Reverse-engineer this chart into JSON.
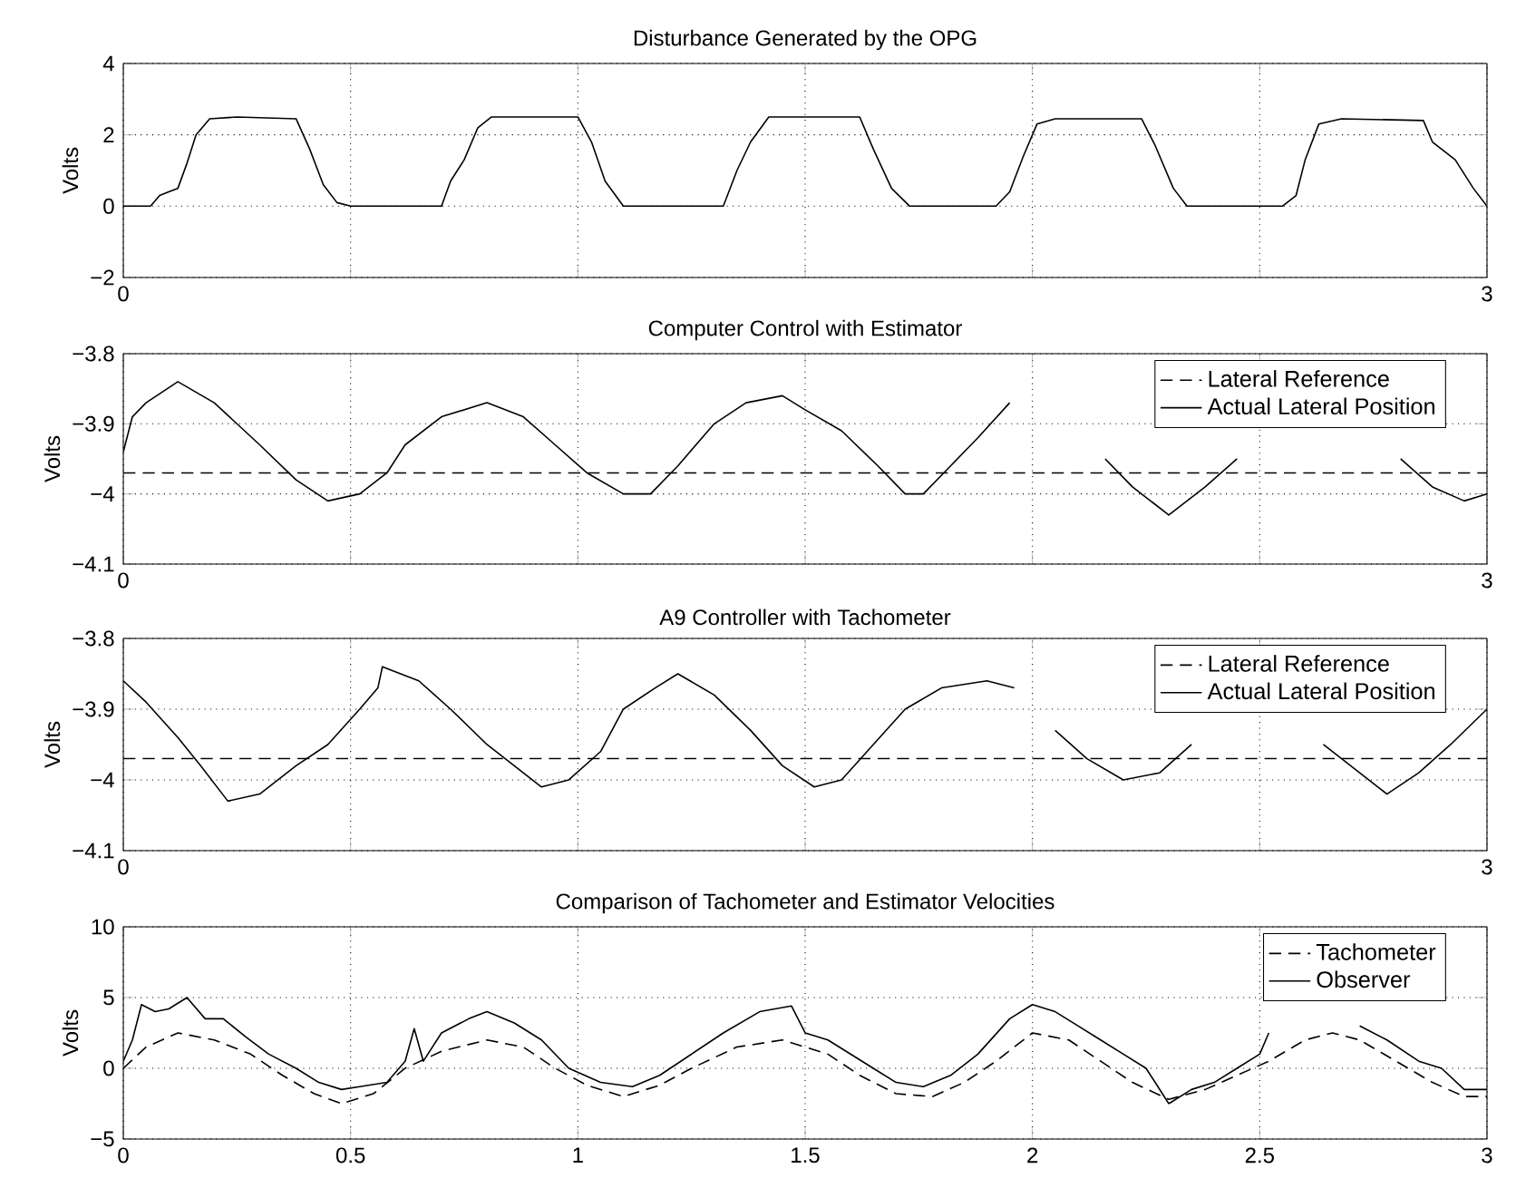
{
  "chart_data": [
    {
      "type": "line",
      "title": "Disturbance Generated by the OPG",
      "ylabel": "Volts",
      "xlim": [
        0,
        3
      ],
      "ylim": [
        -2,
        4
      ],
      "xticks": [
        0,
        {
          "value": 0.5,
          "label": null
        },
        {
          "value": 1,
          "label": null
        },
        {
          "value": 1.5,
          "label": null
        },
        {
          "value": 2,
          "label": null
        },
        {
          "value": 2.5,
          "label": null
        },
        3
      ],
      "yticks": [
        {
          "value": -2,
          "label": "−2"
        },
        0,
        2,
        4
      ],
      "grid": true,
      "line_style": "solid",
      "series": [
        {
          "color": "#000000",
          "x": [
            0,
            0.06,
            0.08,
            0.1,
            0.12,
            0.14,
            0.16,
            0.19,
            0.25,
            0.38,
            0.41,
            0.44,
            0.47,
            0.5,
            0.7,
            0.72,
            0.75,
            0.78,
            0.81,
            1.0,
            1.03,
            1.06,
            1.1,
            1.32,
            1.35,
            1.38,
            1.42,
            1.62,
            1.65,
            1.69,
            1.73,
            1.92,
            1.95,
            1.98,
            2.01,
            2.05,
            2.24,
            2.27,
            2.31,
            2.34,
            2.55,
            2.58,
            2.6,
            2.63,
            2.68,
            2.86,
            2.88,
            2.93,
            2.97,
            3.0
          ],
          "values": [
            0,
            0,
            0.3,
            0.4,
            0.5,
            1.2,
            2.0,
            2.45,
            2.5,
            2.45,
            1.6,
            0.6,
            0.1,
            0,
            0,
            0.7,
            1.3,
            2.2,
            2.5,
            2.5,
            1.8,
            0.7,
            0,
            0,
            1.0,
            1.8,
            2.5,
            2.5,
            1.6,
            0.5,
            0,
            0,
            0.4,
            1.4,
            2.3,
            2.45,
            2.45,
            1.7,
            0.5,
            0,
            0,
            0.3,
            1.3,
            2.3,
            2.45,
            2.4,
            1.8,
            1.3,
            0.5,
            0
          ]
        }
      ]
    },
    {
      "type": "line",
      "title": "Computer Control with Estimator",
      "ylabel": "Volts",
      "xlim": [
        0,
        3
      ],
      "ylim": [
        -4.1,
        -3.8
      ],
      "xticks": [
        0,
        {
          "value": 0.5,
          "label": null
        },
        {
          "value": 1,
          "label": null
        },
        {
          "value": 1.5,
          "label": null
        },
        {
          "value": 2,
          "label": null
        },
        {
          "value": 2.5,
          "label": null
        },
        3
      ],
      "yticks": [
        {
          "value": -4.1,
          "label": "−4.1"
        },
        {
          "value": -4,
          "label": "−4"
        },
        {
          "value": -3.9,
          "label": "−3.9"
        },
        {
          "value": -3.8,
          "label": "−3.8"
        }
      ],
      "grid": true,
      "legend": "top right",
      "series": [
        {
          "name": "Lateral Reference",
          "color": "#000000",
          "line_style": "dashed",
          "x": [
            0,
            3
          ],
          "values": [
            -3.97,
            -3.97
          ]
        },
        {
          "name": "Actual Lateral Position",
          "color": "#000000",
          "line_style": "solid",
          "x": [
            0,
            0.02,
            0.05,
            0.12,
            0.2,
            0.3,
            0.38,
            0.45,
            0.52,
            0.58,
            0.62,
            0.7,
            0.8,
            0.88,
            0.95,
            1.02,
            1.1,
            1.16,
            1.22,
            1.3,
            1.37,
            1.45,
            1.5,
            1.58,
            1.66,
            1.72,
            1.76,
            1.82,
            1.88,
            1.95,
            2.05,
            2.16,
            2.22,
            2.3,
            2.38,
            2.45,
            2.6,
            2.81,
            2.88,
            2.95,
            3.0
          ],
          "values": [
            -3.94,
            -3.89,
            -3.87,
            -3.84,
            -3.87,
            -3.93,
            -3.98,
            -4.01,
            -4.0,
            -3.97,
            -3.93,
            -3.89,
            -3.87,
            -3.89,
            -3.93,
            -3.97,
            -4.0,
            -4.0,
            -3.96,
            -3.9,
            -3.87,
            -3.86,
            -3.88,
            -3.91,
            -3.96,
            -4.0,
            -4.0,
            -3.96,
            -3.92,
            -3.87,
            null,
            -3.95,
            -3.99,
            -4.03,
            -3.99,
            -3.95,
            null,
            -3.95,
            -3.99,
            -4.01,
            -4.0
          ]
        }
      ]
    },
    {
      "type": "line",
      "title": "A9 Controller with Tachometer",
      "ylabel": "Volts",
      "xlim": [
        0,
        3
      ],
      "ylim": [
        -4.1,
        -3.8
      ],
      "xticks": [
        0,
        {
          "value": 0.5,
          "label": null
        },
        {
          "value": 1,
          "label": null
        },
        {
          "value": 1.5,
          "label": null
        },
        {
          "value": 2,
          "label": null
        },
        {
          "value": 2.5,
          "label": null
        },
        3
      ],
      "yticks": [
        {
          "value": -4.1,
          "label": "−4.1"
        },
        {
          "value": -4,
          "label": "−4"
        },
        {
          "value": -3.9,
          "label": "−3.9"
        },
        {
          "value": -3.8,
          "label": "−3.8"
        }
      ],
      "grid": true,
      "legend": "top right",
      "series": [
        {
          "name": "Lateral Reference",
          "color": "#000000",
          "line_style": "dashed",
          "x": [
            0,
            3
          ],
          "values": [
            -3.97,
            -3.97
          ]
        },
        {
          "name": "Actual Lateral Position",
          "color": "#000000",
          "line_style": "solid",
          "x": [
            0,
            0.05,
            0.12,
            0.17,
            0.23,
            0.3,
            0.38,
            0.45,
            0.52,
            0.56,
            0.57,
            0.65,
            0.72,
            0.8,
            0.88,
            0.92,
            0.98,
            1.05,
            1.1,
            1.17,
            1.22,
            1.3,
            1.38,
            1.45,
            1.52,
            1.58,
            1.65,
            1.72,
            1.8,
            1.9,
            1.96,
            2.0,
            2.05,
            2.12,
            2.2,
            2.28,
            2.35,
            2.5,
            2.64,
            2.7,
            2.78,
            2.85,
            2.92,
            3.0
          ],
          "values": [
            -3.86,
            -3.89,
            -3.94,
            -3.98,
            -4.03,
            -4.02,
            -3.98,
            -3.95,
            -3.9,
            -3.87,
            -3.84,
            -3.86,
            -3.9,
            -3.95,
            -3.99,
            -4.01,
            -4.0,
            -3.96,
            -3.9,
            -3.87,
            -3.85,
            -3.88,
            -3.93,
            -3.98,
            -4.01,
            -4.0,
            -3.95,
            -3.9,
            -3.87,
            -3.86,
            -3.87,
            null,
            -3.93,
            -3.97,
            -4.0,
            -3.99,
            -3.95,
            null,
            -3.95,
            -3.98,
            -4.02,
            -3.99,
            -3.95,
            -3.9
          ]
        }
      ]
    },
    {
      "type": "line",
      "title": "Comparison of Tachometer and Estimator Velocities",
      "ylabel": "Volts",
      "xlim": [
        0,
        3
      ],
      "ylim": [
        -5,
        10
      ],
      "xticks": [
        0,
        0.5,
        1,
        1.5,
        2,
        2.5,
        3
      ],
      "yticks": [
        {
          "value": -5,
          "label": "−5"
        },
        0,
        5,
        10
      ],
      "grid": true,
      "legend": "top right",
      "series": [
        {
          "name": "Tachometer",
          "color": "#000000",
          "line_style": "dashed",
          "x": [
            0,
            0.05,
            0.12,
            0.2,
            0.28,
            0.35,
            0.42,
            0.48,
            0.55,
            0.62,
            0.7,
            0.8,
            0.88,
            0.95,
            1.02,
            1.1,
            1.18,
            1.25,
            1.35,
            1.45,
            1.55,
            1.62,
            1.7,
            1.78,
            1.85,
            1.92,
            2.0,
            2.08,
            2.15,
            2.22,
            2.3,
            2.38,
            2.45,
            2.52,
            2.6,
            2.66,
            2.72,
            2.8,
            2.88,
            2.95,
            3.0
          ],
          "values": [
            0,
            1.5,
            2.5,
            2,
            1,
            -0.5,
            -1.8,
            -2.5,
            -1.8,
            0,
            1.2,
            2,
            1.5,
            0,
            -1.2,
            -2,
            -1.2,
            0,
            1.5,
            2,
            1,
            -0.5,
            -1.8,
            -2,
            -1,
            0.5,
            2.5,
            2,
            0.5,
            -1,
            -2.2,
            -1.5,
            -0.5,
            0.5,
            2,
            2.5,
            2,
            0.5,
            -1,
            -2,
            -2
          ]
        },
        {
          "name": "Observer",
          "color": "#000000",
          "line_style": "solid",
          "x": [
            0,
            0.02,
            0.04,
            0.07,
            0.1,
            0.14,
            0.18,
            0.22,
            0.27,
            0.32,
            0.38,
            0.43,
            0.48,
            0.52,
            0.58,
            0.62,
            0.64,
            0.66,
            0.7,
            0.76,
            0.8,
            0.86,
            0.92,
            0.98,
            1.05,
            1.12,
            1.18,
            1.25,
            1.32,
            1.4,
            1.47,
            1.5,
            1.55,
            1.6,
            1.65,
            1.7,
            1.76,
            1.82,
            1.88,
            1.95,
            2.0,
            2.05,
            2.1,
            2.15,
            2.2,
            2.25,
            2.3,
            2.35,
            2.4,
            2.45,
            2.5,
            2.52,
            2.62,
            2.72,
            2.78,
            2.85,
            2.9,
            2.95,
            3.0
          ],
          "values": [
            0.5,
            2,
            4.5,
            4,
            4.2,
            5,
            3.5,
            3.5,
            2.2,
            1,
            0,
            -1,
            -1.5,
            -1.3,
            -1,
            0.5,
            2.8,
            0.5,
            2.5,
            3.5,
            4,
            3.2,
            2,
            0,
            -1,
            -1.3,
            -0.5,
            1,
            2.5,
            4,
            4.4,
            2.5,
            2,
            1,
            0,
            -1,
            -1.3,
            -0.5,
            1,
            3.5,
            4.5,
            4,
            3,
            2,
            1,
            0,
            -2.5,
            -1.5,
            -1,
            0,
            1,
            2.5,
            null,
            3,
            2,
            0.5,
            0,
            -1.5,
            -1.5
          ]
        }
      ]
    }
  ]
}
